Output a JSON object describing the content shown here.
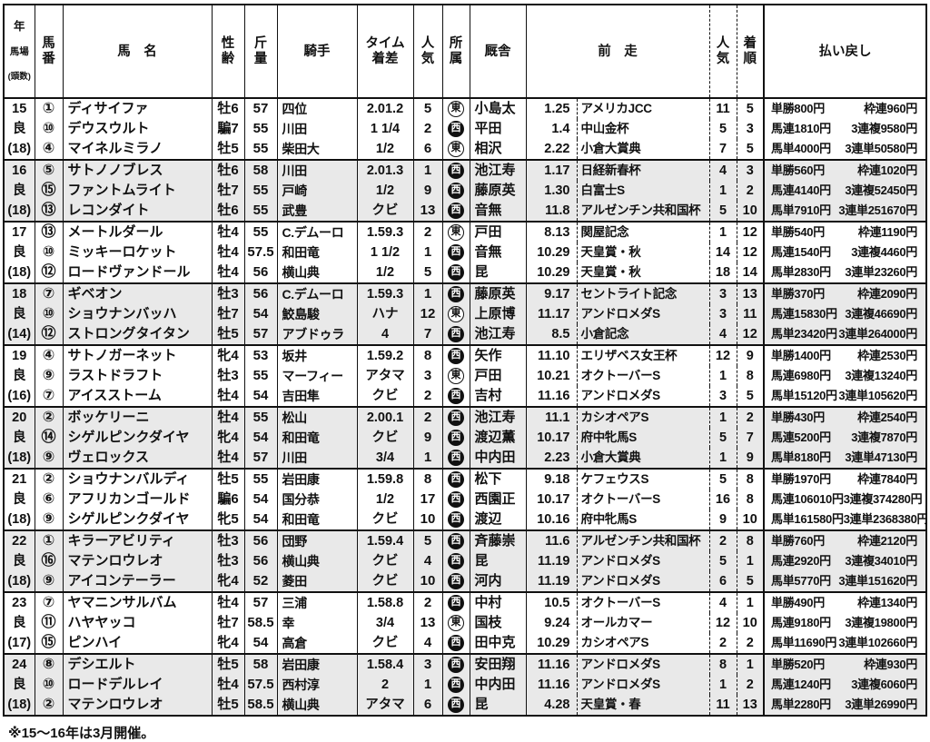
{
  "table": {
    "headers": {
      "ymd_l1": "年",
      "ymd_l2": "馬場",
      "ymd_l3": "(頭数)",
      "num": "馬\n番",
      "name": "馬　名",
      "sex": "性\n齢",
      "wt": "斤\n量",
      "jky": "騎手",
      "time": "タイム\n着差",
      "pop": "人\n気",
      "aff": "所\n属",
      "stb": "厩舎",
      "prev": "前　走",
      "ppop": "人\n気",
      "pfin": "着\n順",
      "pay": "払い戻し"
    },
    "colors": {
      "stripe_gray": "#e9e9e9",
      "border_black": "#111111"
    },
    "blocks": [
      {
        "year": "15",
        "track": "良",
        "count": "(18)",
        "rows": [
          {
            "num": "①",
            "name": "ディサイファ",
            "sex": "牡6",
            "wt": "57",
            "jky": "四位",
            "time": "2.01.2",
            "pop": "5",
            "aff": "東",
            "stb": "小島太",
            "pd": "1.25",
            "pr": "アメリカJCC",
            "pp": "11",
            "pf": "5",
            "pay1": "単勝800円",
            "pay2": "枠連960円"
          },
          {
            "num": "⑩",
            "name": "デウスウルト",
            "sex": "騙7",
            "wt": "55",
            "jky": "川田",
            "time": "1 1/4",
            "pop": "2",
            "aff": "西",
            "stb": "平田",
            "pd": "1.4",
            "pr": "中山金杯",
            "pp": "5",
            "pf": "3",
            "pay1": "馬連1810円",
            "pay2": "3連複9580円"
          },
          {
            "num": "④",
            "name": "マイネルミラノ",
            "sex": "牡5",
            "wt": "55",
            "jky": "柴田大",
            "time": "1/2",
            "pop": "6",
            "aff": "東",
            "stb": "相沢",
            "pd": "2.22",
            "pr": "小倉大賞典",
            "pp": "7",
            "pf": "5",
            "pay1": "馬単4000円",
            "pay2": "3連単50580円"
          }
        ]
      },
      {
        "year": "16",
        "track": "良",
        "count": "(18)",
        "rows": [
          {
            "num": "⑤",
            "name": "サトノノブレス",
            "sex": "牡6",
            "wt": "58",
            "jky": "川田",
            "time": "2.01.3",
            "pop": "1",
            "aff": "西",
            "stb": "池江寿",
            "pd": "1.17",
            "pr": "日経新春杯",
            "pp": "4",
            "pf": "3",
            "pay1": "単勝560円",
            "pay2": "枠連1020円"
          },
          {
            "num": "⑮",
            "name": "ファントムライト",
            "sex": "牡7",
            "wt": "55",
            "jky": "戸崎",
            "time": "1/2",
            "pop": "9",
            "aff": "西",
            "stb": "藤原英",
            "pd": "1.30",
            "pr": "白富士S",
            "pp": "1",
            "pf": "2",
            "pay1": "馬連4140円",
            "pay2": "3連複52450円"
          },
          {
            "num": "⑬",
            "name": "レコンダイト",
            "sex": "牡6",
            "wt": "55",
            "jky": "武豊",
            "time": "クビ",
            "pop": "13",
            "aff": "西",
            "stb": "音無",
            "pd": "11.8",
            "pr": "アルゼンチン共和国杯",
            "pp": "5",
            "pf": "10",
            "pay1": "馬単7910円",
            "pay2": "3連単251670円"
          }
        ]
      },
      {
        "year": "17",
        "track": "良",
        "count": "(18)",
        "rows": [
          {
            "num": "⑬",
            "name": "メートルダール",
            "sex": "牡4",
            "wt": "55",
            "jky": "C.デムーロ",
            "time": "1.59.3",
            "pop": "2",
            "aff": "東",
            "stb": "戸田",
            "pd": "8.13",
            "pr": "関屋記念",
            "pp": "1",
            "pf": "12",
            "pay1": "単勝540円",
            "pay2": "枠連1190円"
          },
          {
            "num": "⑩",
            "name": "ミッキーロケット",
            "sex": "牡4",
            "wt": "57.5",
            "jky": "和田竜",
            "time": "1 1/2",
            "pop": "1",
            "aff": "西",
            "stb": "音無",
            "pd": "10.29",
            "pr": "天皇賞・秋",
            "pp": "14",
            "pf": "12",
            "pay1": "馬連1540円",
            "pay2": "3連複4460円"
          },
          {
            "num": "⑫",
            "name": "ロードヴァンドール",
            "sex": "牡4",
            "wt": "56",
            "jky": "横山典",
            "time": "1/2",
            "pop": "5",
            "aff": "西",
            "stb": "昆",
            "pd": "10.29",
            "pr": "天皇賞・秋",
            "pp": "18",
            "pf": "14",
            "pay1": "馬単2830円",
            "pay2": "3連単23260円"
          }
        ]
      },
      {
        "year": "18",
        "track": "良",
        "count": "(14)",
        "rows": [
          {
            "num": "⑦",
            "name": "ギベオン",
            "sex": "牡3",
            "wt": "56",
            "jky": "C.デムーロ",
            "time": "1.59.3",
            "pop": "1",
            "aff": "西",
            "stb": "藤原英",
            "pd": "9.17",
            "pr": "セントライト記念",
            "pp": "3",
            "pf": "13",
            "pay1": "単勝370円",
            "pay2": "枠連2090円"
          },
          {
            "num": "⑩",
            "name": "ショウナンバッハ",
            "sex": "牡7",
            "wt": "54",
            "jky": "鮫島駿",
            "time": "ハナ",
            "pop": "12",
            "aff": "東",
            "stb": "上原博",
            "pd": "11.17",
            "pr": "アンドロメダS",
            "pp": "3",
            "pf": "11",
            "pay1": "馬連15830円",
            "pay2": "3連複46690円"
          },
          {
            "num": "⑫",
            "name": "ストロングタイタン",
            "sex": "牡5",
            "wt": "57",
            "jky": "アブドゥラ",
            "time": "4",
            "pop": "7",
            "aff": "西",
            "stb": "池江寿",
            "pd": "8.5",
            "pr": "小倉記念",
            "pp": "4",
            "pf": "12",
            "pay1": "馬単23420円",
            "pay2": "3連単264000円"
          }
        ]
      },
      {
        "year": "19",
        "track": "良",
        "count": "(16)",
        "rows": [
          {
            "num": "④",
            "name": "サトノガーネット",
            "sex": "牝4",
            "wt": "53",
            "jky": "坂井",
            "time": "1.59.2",
            "pop": "8",
            "aff": "西",
            "stb": "矢作",
            "pd": "11.10",
            "pr": "エリザベス女王杯",
            "pp": "12",
            "pf": "9",
            "pay1": "単勝1400円",
            "pay2": "枠連2530円"
          },
          {
            "num": "⑨",
            "name": "ラストドラフト",
            "sex": "牡3",
            "wt": "55",
            "jky": "マーフィー",
            "time": "アタマ",
            "pop": "3",
            "aff": "東",
            "stb": "戸田",
            "pd": "10.21",
            "pr": "オクトーバーS",
            "pp": "1",
            "pf": "8",
            "pay1": "馬連6980円",
            "pay2": "3連複13240円"
          },
          {
            "num": "⑦",
            "name": "アイスストーム",
            "sex": "牡4",
            "wt": "54",
            "jky": "吉田隼",
            "time": "クビ",
            "pop": "2",
            "aff": "西",
            "stb": "吉村",
            "pd": "11.16",
            "pr": "アンドロメダS",
            "pp": "3",
            "pf": "5",
            "pay1": "馬単15120円",
            "pay2": "3連単105620円"
          }
        ]
      },
      {
        "year": "20",
        "track": "良",
        "count": "(18)",
        "rows": [
          {
            "num": "②",
            "name": "ボッケリーニ",
            "sex": "牡4",
            "wt": "55",
            "jky": "松山",
            "time": "2.00.1",
            "pop": "2",
            "aff": "西",
            "stb": "池江寿",
            "pd": "11.1",
            "pr": "カシオペアS",
            "pp": "1",
            "pf": "2",
            "pay1": "単勝430円",
            "pay2": "枠連2540円"
          },
          {
            "num": "⑭",
            "name": "シゲルピンクダイヤ",
            "sex": "牝4",
            "wt": "54",
            "jky": "和田竜",
            "time": "クビ",
            "pop": "9",
            "aff": "西",
            "stb": "渡辺薫",
            "pd": "10.17",
            "pr": "府中牝馬S",
            "pp": "5",
            "pf": "7",
            "pay1": "馬連5200円",
            "pay2": "3連複7870円"
          },
          {
            "num": "⑨",
            "name": "ヴェロックス",
            "sex": "牡4",
            "wt": "57",
            "jky": "川田",
            "time": "3/4",
            "pop": "1",
            "aff": "西",
            "stb": "中内田",
            "pd": "2.23",
            "pr": "小倉大賞典",
            "pp": "1",
            "pf": "9",
            "pay1": "馬単8180円",
            "pay2": "3連単47130円"
          }
        ]
      },
      {
        "year": "21",
        "track": "良",
        "count": "(18)",
        "rows": [
          {
            "num": "②",
            "name": "ショウナンバルディ",
            "sex": "牡5",
            "wt": "55",
            "jky": "岩田康",
            "time": "1.59.8",
            "pop": "8",
            "aff": "西",
            "stb": "松下",
            "pd": "9.18",
            "pr": "ケフェウスS",
            "pp": "5",
            "pf": "8",
            "pay1": "単勝1970円",
            "pay2": "枠連7840円"
          },
          {
            "num": "⑥",
            "name": "アフリカンゴールド",
            "sex": "騙6",
            "wt": "54",
            "jky": "国分恭",
            "time": "1/2",
            "pop": "17",
            "aff": "西",
            "stb": "西園正",
            "pd": "10.17",
            "pr": "オクトーバーS",
            "pp": "16",
            "pf": "8",
            "pay1": "馬連106010円",
            "pay2": "3連複374280円"
          },
          {
            "num": "⑨",
            "name": "シゲルピンクダイヤ",
            "sex": "牝5",
            "wt": "54",
            "jky": "和田竜",
            "time": "クビ",
            "pop": "10",
            "aff": "西",
            "stb": "渡辺",
            "pd": "10.16",
            "pr": "府中牝馬S",
            "pp": "9",
            "pf": "10",
            "pay1": "馬単161580円",
            "pay2": "3連単2368380円"
          }
        ]
      },
      {
        "year": "22",
        "track": "良",
        "count": "(18)",
        "rows": [
          {
            "num": "①",
            "name": "キラーアビリティ",
            "sex": "牡3",
            "wt": "56",
            "jky": "団野",
            "time": "1.59.4",
            "pop": "5",
            "aff": "西",
            "stb": "斉藤崇",
            "pd": "11.6",
            "pr": "アルゼンチン共和国杯",
            "pp": "2",
            "pf": "8",
            "pay1": "単勝760円",
            "pay2": "枠連2120円"
          },
          {
            "num": "⑯",
            "name": "マテンロウレオ",
            "sex": "牡3",
            "wt": "56",
            "jky": "横山典",
            "time": "クビ",
            "pop": "4",
            "aff": "西",
            "stb": "昆",
            "pd": "11.19",
            "pr": "アンドロメダS",
            "pp": "5",
            "pf": "1",
            "pay1": "馬連2920円",
            "pay2": "3連複34010円"
          },
          {
            "num": "⑨",
            "name": "アイコンテーラー",
            "sex": "牝4",
            "wt": "52",
            "jky": "菱田",
            "time": "クビ",
            "pop": "10",
            "aff": "西",
            "stb": "河内",
            "pd": "11.19",
            "pr": "アンドロメダS",
            "pp": "6",
            "pf": "5",
            "pay1": "馬単5770円",
            "pay2": "3連単151620円"
          }
        ]
      },
      {
        "year": "23",
        "track": "良",
        "count": "(17)",
        "rows": [
          {
            "num": "⑦",
            "name": "ヤマニンサルバム",
            "sex": "牡4",
            "wt": "57",
            "jky": "三浦",
            "time": "1.58.8",
            "pop": "2",
            "aff": "西",
            "stb": "中村",
            "pd": "10.5",
            "pr": "オクトーバーS",
            "pp": "4",
            "pf": "1",
            "pay1": "単勝490円",
            "pay2": "枠連1340円"
          },
          {
            "num": "⑪",
            "name": "ハヤヤッコ",
            "sex": "牡7",
            "wt": "58.5",
            "jky": "幸",
            "time": "3/4",
            "pop": "13",
            "aff": "東",
            "stb": "国枝",
            "pd": "9.24",
            "pr": "オールカマー",
            "pp": "12",
            "pf": "10",
            "pay1": "馬連9180円",
            "pay2": "3連複19800円"
          },
          {
            "num": "⑮",
            "name": "ピンハイ",
            "sex": "牝4",
            "wt": "54",
            "jky": "高倉",
            "time": "クビ",
            "pop": "4",
            "aff": "西",
            "stb": "田中克",
            "pd": "10.29",
            "pr": "カシオペアS",
            "pp": "2",
            "pf": "2",
            "pay1": "馬単11690円",
            "pay2": "3連単102660円"
          }
        ]
      },
      {
        "year": "24",
        "track": "良",
        "count": "(18)",
        "rows": [
          {
            "num": "⑧",
            "name": "デシエルト",
            "sex": "牡5",
            "wt": "58",
            "jky": "岩田康",
            "time": "1.58.4",
            "pop": "3",
            "aff": "西",
            "stb": "安田翔",
            "pd": "11.16",
            "pr": "アンドロメダS",
            "pp": "8",
            "pf": "1",
            "pay1": "単勝520円",
            "pay2": "枠連930円"
          },
          {
            "num": "⑩",
            "name": "ロードデルレイ",
            "sex": "牡4",
            "wt": "57.5",
            "jky": "西村淳",
            "time": "2",
            "pop": "1",
            "aff": "西",
            "stb": "中内田",
            "pd": "11.16",
            "pr": "アンドロメダS",
            "pp": "1",
            "pf": "2",
            "pay1": "馬連1240円",
            "pay2": "3連複6060円"
          },
          {
            "num": "②",
            "name": "マテンロウレオ",
            "sex": "牡5",
            "wt": "58.5",
            "jky": "横山典",
            "time": "アタマ",
            "pop": "6",
            "aff": "西",
            "stb": "昆",
            "pd": "4.28",
            "pr": "天皇賞・春",
            "pp": "11",
            "pf": "13",
            "pay1": "馬単2280円",
            "pay2": "3連単26990円"
          }
        ]
      }
    ]
  },
  "footnote": "※15～16年は3月開催。"
}
